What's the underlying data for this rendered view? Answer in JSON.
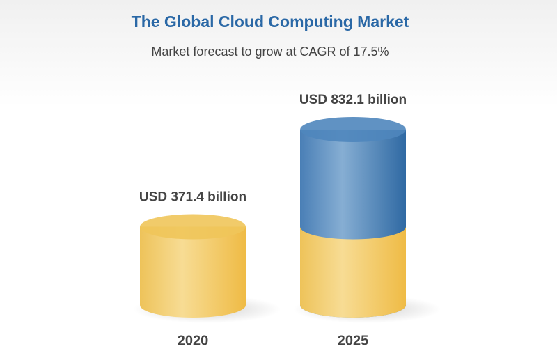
{
  "chart_data": {
    "type": "bar",
    "title": "The Global Cloud Computing Market",
    "subtitle": "Market forecast to grow at CAGR of 17.5%",
    "categories": [
      "2020",
      "2025"
    ],
    "values": [
      371.4,
      832.1
    ],
    "value_labels": [
      "USD 371.4 billion",
      "USD 832.1 billion"
    ],
    "colors": [
      "#f0c55a",
      "#4f86bd"
    ]
  }
}
